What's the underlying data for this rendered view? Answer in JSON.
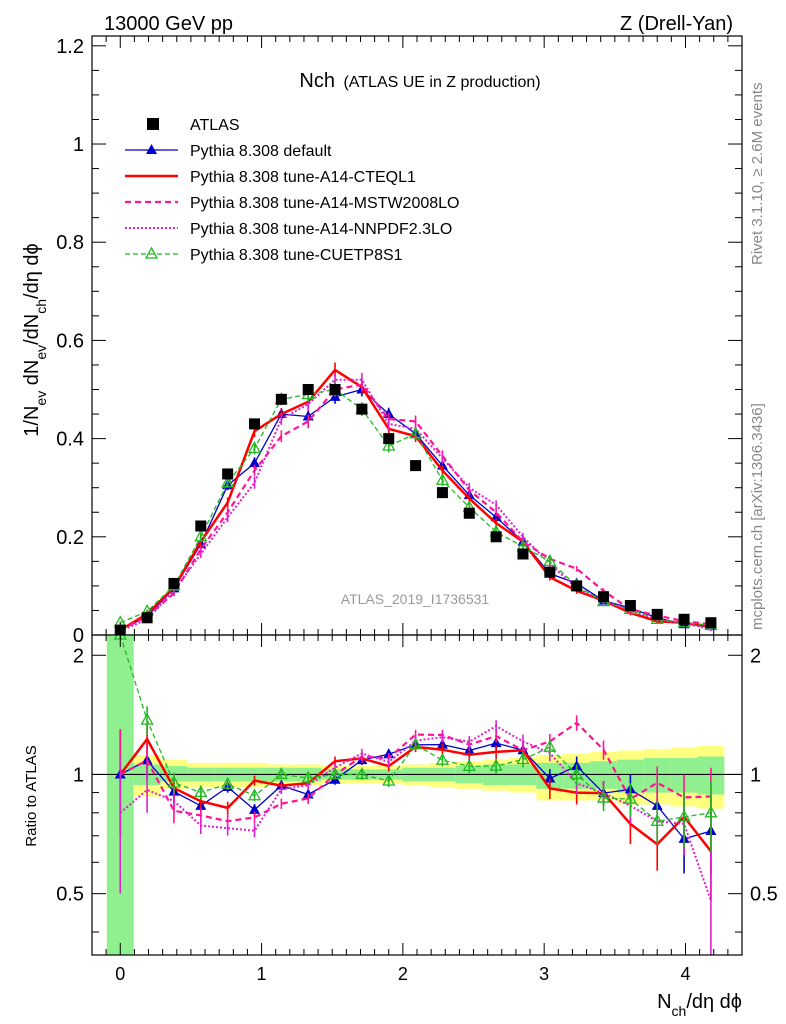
{
  "header": {
    "left": "13000 GeV pp",
    "right": "Z (Drell-Yan)"
  },
  "side_labels": {
    "rivet": "Rivet 3.1.10, ≥ 2.6M events",
    "mcplots": "mcplots.cern.ch [arXiv:1306.3436]"
  },
  "chart_data": {
    "type": "scatter",
    "title_main": "Nch",
    "title_sub": "(ATLAS UE in Z production)",
    "analysis_id": "ATLAS_2019_I1736531",
    "xlabel": "N_ch/dη dϕ",
    "ylabel": "1/N_ev dN_ev/dN_ch/dη dϕ",
    "ratio_ylabel": "Ratio to ATLAS",
    "xlim": [
      -0.2,
      4.4
    ],
    "ylim": [
      0,
      1.22
    ],
    "ratio_ylim": [
      0.35,
      2.25
    ],
    "x_ticks": [
      0,
      1,
      2,
      3,
      4
    ],
    "y_ticks": [
      0,
      0.2,
      0.4,
      0.6,
      0.8,
      1,
      1.2
    ],
    "y_tick_labels": [
      "0",
      "0.2",
      "0.4",
      "0.6",
      "0.8",
      "1",
      "1.2"
    ],
    "ratio_ticks": [
      0.5,
      1,
      2
    ],
    "x": [
      0,
      0.19,
      0.38,
      0.57,
      0.76,
      0.95,
      1.14,
      1.33,
      1.52,
      1.71,
      1.9,
      2.09,
      2.28,
      2.47,
      2.66,
      2.85,
      3.04,
      3.23,
      3.42,
      3.61,
      3.8,
      3.99,
      4.18
    ],
    "series": [
      {
        "name": "ATLAS",
        "style": "data",
        "color": "#000000",
        "values": [
          0.01,
          0.035,
          0.105,
          0.222,
          0.328,
          0.43,
          0.48,
          0.5,
          0.5,
          0.46,
          0.4,
          0.345,
          0.29,
          0.248,
          0.2,
          0.165,
          0.128,
          0.1,
          0.078,
          0.06,
          0.042,
          0.032,
          0.025
        ]
      },
      {
        "name": "Pythia 8.308 default",
        "style": "solid-marker",
        "marker": "triangle",
        "color": "#0000cc",
        "width": 1.3,
        "values": [
          0.01,
          0.038,
          0.095,
          0.185,
          0.305,
          0.35,
          0.45,
          0.445,
          0.485,
          0.5,
          0.45,
          0.41,
          0.345,
          0.285,
          0.24,
          0.19,
          0.125,
          0.105,
          0.07,
          0.055,
          0.035,
          0.022,
          0.018
        ],
        "errors": [
          0.003,
          0.004,
          0.006,
          0.008,
          0.01,
          0.012,
          0.012,
          0.014,
          0.014,
          0.014,
          0.013,
          0.012,
          0.011,
          0.01,
          0.009,
          0.008,
          0.007,
          0.006,
          0.005,
          0.005,
          0.004,
          0.004,
          0.004
        ]
      },
      {
        "name": "Pythia 8.308 tune-A14-CTEQL1",
        "style": "solid",
        "color": "#ff0000",
        "width": 2.5,
        "values": [
          0.01,
          0.043,
          0.097,
          0.19,
          0.27,
          0.415,
          0.45,
          0.475,
          0.54,
          0.505,
          0.42,
          0.405,
          0.335,
          0.278,
          0.228,
          0.19,
          0.118,
          0.09,
          0.07,
          0.045,
          0.028,
          0.025,
          0.016
        ],
        "errors": [
          0.003,
          0.004,
          0.006,
          0.008,
          0.01,
          0.012,
          0.012,
          0.014,
          0.015,
          0.014,
          0.013,
          0.012,
          0.011,
          0.01,
          0.009,
          0.008,
          0.007,
          0.006,
          0.005,
          0.005,
          0.004,
          0.004,
          0.004
        ]
      },
      {
        "name": "Pythia 8.308 tune-A14-MSTW2008LO",
        "style": "dashed",
        "color": "#ff1493",
        "width": 2.2,
        "values": [
          0.01,
          0.038,
          0.085,
          0.175,
          0.25,
          0.335,
          0.405,
          0.435,
          0.5,
          0.51,
          0.44,
          0.435,
          0.365,
          0.295,
          0.25,
          0.19,
          0.155,
          0.135,
          0.09,
          0.052,
          0.04,
          0.028,
          0.022
        ],
        "errors": [
          0.003,
          0.004,
          0.006,
          0.008,
          0.01,
          0.012,
          0.012,
          0.014,
          0.014,
          0.014,
          0.013,
          0.012,
          0.011,
          0.01,
          0.009,
          0.008,
          0.007,
          0.006,
          0.005,
          0.005,
          0.004,
          0.004,
          0.004
        ]
      },
      {
        "name": "Pythia 8.308 tune-A14-NNPDF2.3LO",
        "style": "dotted",
        "color": "#e020d0",
        "width": 2.0,
        "values": [
          0.008,
          0.032,
          0.09,
          0.165,
          0.24,
          0.31,
          0.44,
          0.47,
          0.52,
          0.52,
          0.43,
          0.42,
          0.36,
          0.3,
          0.265,
          0.2,
          0.145,
          0.095,
          0.07,
          0.05,
          0.032,
          0.024,
          0.012
        ],
        "errors": [
          0.003,
          0.004,
          0.006,
          0.008,
          0.01,
          0.012,
          0.012,
          0.014,
          0.014,
          0.014,
          0.013,
          0.012,
          0.011,
          0.01,
          0.009,
          0.008,
          0.007,
          0.006,
          0.005,
          0.005,
          0.004,
          0.004,
          0.004
        ]
      },
      {
        "name": "Pythia 8.308 tune-CUETP8S1",
        "style": "dashed-marker",
        "marker": "open-triangle",
        "color": "#22b822",
        "width": 1.3,
        "values": [
          0.025,
          0.048,
          0.1,
          0.2,
          0.31,
          0.38,
          0.48,
          0.49,
          0.5,
          0.46,
          0.385,
          0.41,
          0.315,
          0.26,
          0.21,
          0.18,
          0.15,
          0.1,
          0.068,
          0.052,
          0.032,
          0.025,
          0.02
        ],
        "errors": [
          0.003,
          0.004,
          0.006,
          0.008,
          0.01,
          0.012,
          0.012,
          0.014,
          0.014,
          0.014,
          0.013,
          0.012,
          0.011,
          0.01,
          0.009,
          0.008,
          0.007,
          0.006,
          0.005,
          0.005,
          0.004,
          0.004,
          0.004
        ]
      }
    ],
    "ratio_band_inner": [
      0.35,
      0.94,
      0.96,
      0.96,
      0.96,
      0.96,
      0.96,
      0.96,
      0.97,
      0.97,
      0.97,
      0.96,
      0.96,
      0.95,
      0.94,
      0.94,
      0.92,
      0.92,
      0.92,
      0.9,
      0.9,
      0.9,
      0.89
    ],
    "ratio_band_inner_hi": [
      2.25,
      1.06,
      1.05,
      1.04,
      1.04,
      1.04,
      1.04,
      1.04,
      1.03,
      1.03,
      1.03,
      1.04,
      1.04,
      1.05,
      1.06,
      1.06,
      1.07,
      1.07,
      1.08,
      1.09,
      1.1,
      1.1,
      1.11
    ],
    "ratio_band_outer_lo": [
      0.35,
      0.88,
      0.92,
      0.93,
      0.93,
      0.93,
      0.94,
      0.94,
      0.95,
      0.95,
      0.95,
      0.94,
      0.93,
      0.92,
      0.91,
      0.9,
      0.86,
      0.86,
      0.86,
      0.84,
      0.84,
      0.83,
      0.82
    ],
    "ratio_band_outer_hi": [
      2.25,
      1.12,
      1.09,
      1.07,
      1.07,
      1.07,
      1.06,
      1.06,
      1.05,
      1.05,
      1.05,
      1.06,
      1.07,
      1.08,
      1.09,
      1.1,
      1.12,
      1.13,
      1.14,
      1.15,
      1.16,
      1.17,
      1.18
    ]
  }
}
